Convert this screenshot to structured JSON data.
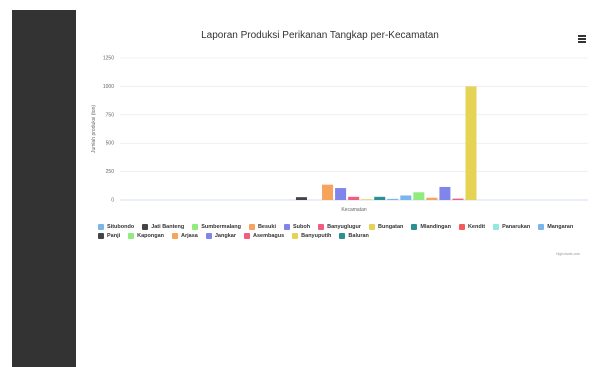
{
  "sidebar": {},
  "credits": "Highcharts.com",
  "chart_data": {
    "type": "bar",
    "title": "Laporan Produksi Perikanan Tangkap per-Kecamatan",
    "xlabel": "Kecamatan",
    "ylabel": "Jumlah produksi (ton)",
    "ylim": [
      0,
      1250
    ],
    "yticks": [
      0,
      250,
      500,
      750,
      1000,
      1250
    ],
    "grid": true,
    "legend_position": "bottom",
    "series": [
      {
        "name": "Situbondo",
        "color": "#7cb5ec",
        "value": 0
      },
      {
        "name": "Jati Banteng",
        "color": "#434348",
        "value": 0
      },
      {
        "name": "Sumbermalang",
        "color": "#90ed7d",
        "value": 0
      },
      {
        "name": "Besuki",
        "color": "#f7a35c",
        "value": 0
      },
      {
        "name": "Suboh",
        "color": "#8085e9",
        "value": 0
      },
      {
        "name": "Banyuglugur",
        "color": "#f15c80",
        "value": 0
      },
      {
        "name": "Bungatan",
        "color": "#e4d354",
        "value": 0
      },
      {
        "name": "Mlandingan",
        "color": "#2b908f",
        "value": 0
      },
      {
        "name": "Kendit",
        "color": "#f45b5b",
        "value": 0
      },
      {
        "name": "Panarukan",
        "color": "#91e8e1",
        "value": 0
      },
      {
        "name": "Mangaran",
        "color": "#7cb5ec",
        "value": 0
      },
      {
        "name": "Panji",
        "color": "#434348",
        "value": 25
      },
      {
        "name": "Kapongan",
        "color": "#90ed7d",
        "value": 0
      },
      {
        "name": "Arjasa",
        "color": "#f7a35c",
        "value": 135
      },
      {
        "name": "Jangkar",
        "color": "#8085e9",
        "value": 105
      },
      {
        "name": "Asembagus",
        "color": "#f15c80",
        "value": 28
      },
      {
        "name": "Banyuputih",
        "color": "#e4d354",
        "value": 5
      },
      {
        "name": "Baluran",
        "color": "#2b908f",
        "value": 28
      },
      {
        "name": "Situbondo",
        "color": "#7cb5ec",
        "value": 10
      },
      {
        "name": "Mangaran",
        "color": "#7cb5ec",
        "value": 40
      },
      {
        "name": "Sumbermalang",
        "color": "#90ed7d",
        "value": 68
      },
      {
        "name": "Besuki",
        "color": "#f7a35c",
        "value": 20
      },
      {
        "name": "Suboh",
        "color": "#8085e9",
        "value": 115
      },
      {
        "name": "Banyuglugur",
        "color": "#f15c80",
        "value": 12
      },
      {
        "name": "Bungatan",
        "color": "#e4d354",
        "value": 1000
      }
    ],
    "legend": [
      {
        "name": "Situbondo",
        "color": "#7cb5ec"
      },
      {
        "name": "Jati Banteng",
        "color": "#434348"
      },
      {
        "name": "Sumbermalang",
        "color": "#90ed7d"
      },
      {
        "name": "Besuki",
        "color": "#f7a35c"
      },
      {
        "name": "Suboh",
        "color": "#8085e9"
      },
      {
        "name": "Banyuglugur",
        "color": "#f15c80"
      },
      {
        "name": "Bungatan",
        "color": "#e4d354"
      },
      {
        "name": "Mlandingan",
        "color": "#2b908f"
      },
      {
        "name": "Kendit",
        "color": "#f45b5b"
      },
      {
        "name": "Panarukan",
        "color": "#91e8e1"
      },
      {
        "name": "Mangaran",
        "color": "#7cb5ec"
      },
      {
        "name": "Panji",
        "color": "#434348"
      },
      {
        "name": "Kapongan",
        "color": "#90ed7d"
      },
      {
        "name": "Arjasa",
        "color": "#f7a35c"
      },
      {
        "name": "Jangkar",
        "color": "#8085e9"
      },
      {
        "name": "Asembagus",
        "color": "#f15c80"
      },
      {
        "name": "Banyuputih",
        "color": "#e4d354"
      },
      {
        "name": "Baluran",
        "color": "#2b908f"
      }
    ]
  }
}
